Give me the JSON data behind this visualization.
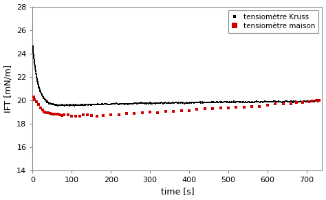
{
  "title": "",
  "xlabel": "time [s]",
  "ylabel": "IFT [mN/m]",
  "xlim": [
    0,
    740
  ],
  "ylim": [
    14,
    28
  ],
  "yticks": [
    14,
    16,
    18,
    20,
    22,
    24,
    26,
    28
  ],
  "xticks": [
    0,
    100,
    200,
    300,
    400,
    500,
    600,
    700
  ],
  "legend_kruss": "tensiomètre Kruss",
  "legend_maison": "tensiomètre maison",
  "color_kruss": "#000000",
  "color_maison": "#cc0000",
  "bg_color": "#ffffff",
  "spine_color": "#888888"
}
